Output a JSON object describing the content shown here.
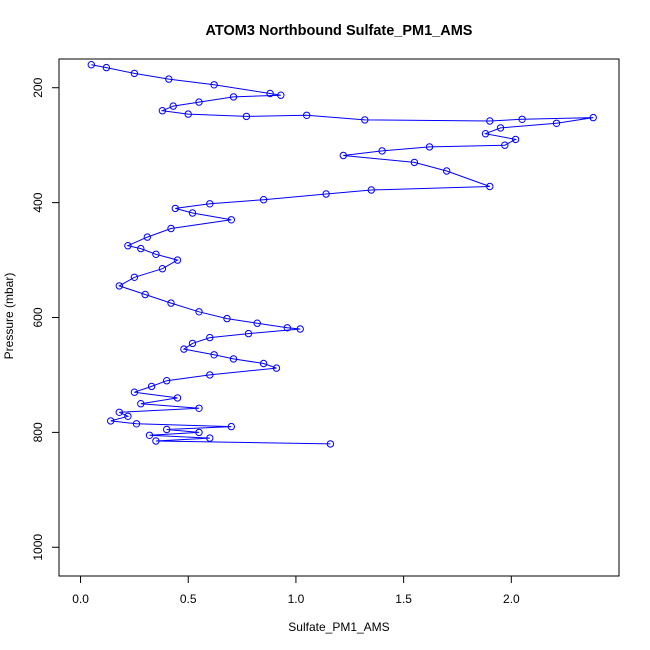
{
  "chart_data": {
    "type": "line",
    "title": "ATOM3 Northbound Sulfate_PM1_AMS",
    "xlabel": "Sulfate_PM1_AMS",
    "ylabel": "Pressure (mbar)",
    "xlim": [
      -0.1,
      2.5
    ],
    "ylim": [
      1050,
      150
    ],
    "y_reversed": true,
    "grid": false,
    "marker": "open-circle",
    "line_color": "#0000ff",
    "marker_color": "#0000ff",
    "x_ticks": [
      0.0,
      0.5,
      1.0,
      1.5,
      2.0
    ],
    "x_tick_labels": [
      "0.0",
      "0.5",
      "1.0",
      "1.5",
      "2.0"
    ],
    "y_ticks": [
      200,
      400,
      600,
      800,
      1000
    ],
    "y_tick_labels": [
      "200",
      "400",
      "600",
      "800",
      "1000"
    ],
    "series": [
      {
        "x": [
          0.05,
          0.12,
          0.25,
          0.41,
          0.62,
          0.88,
          0.93,
          0.71,
          0.55,
          0.43,
          0.38,
          0.5,
          0.77,
          1.05,
          1.32,
          1.9,
          2.05,
          2.38,
          2.21,
          1.95,
          1.88,
          2.02,
          1.97,
          1.62,
          1.4,
          1.22,
          1.55,
          1.7,
          1.9,
          1.35,
          1.14,
          0.85,
          0.6,
          0.44,
          0.52,
          0.7,
          0.42,
          0.31,
          0.22,
          0.28,
          0.35,
          0.45,
          0.38,
          0.25,
          0.18,
          0.3,
          0.42,
          0.55,
          0.68,
          0.82,
          0.96,
          1.02,
          0.78,
          0.6,
          0.52,
          0.48,
          0.62,
          0.71,
          0.85,
          0.91,
          0.6,
          0.4,
          0.33,
          0.25,
          0.45,
          0.28,
          0.55,
          0.18,
          0.22,
          0.14,
          0.26,
          0.7,
          0.4,
          0.55,
          0.32,
          0.6,
          0.35,
          1.16
        ],
        "y": [
          160,
          165,
          175,
          185,
          195,
          210,
          213,
          216,
          225,
          232,
          240,
          246,
          250,
          248,
          256,
          258,
          255,
          252,
          262,
          270,
          280,
          290,
          300,
          303,
          310,
          318,
          330,
          345,
          372,
          378,
          385,
          395,
          402,
          410,
          418,
          430,
          445,
          460,
          475,
          480,
          490,
          500,
          515,
          530,
          545,
          560,
          575,
          590,
          602,
          610,
          618,
          620,
          628,
          635,
          645,
          655,
          665,
          672,
          680,
          688,
          700,
          710,
          720,
          730,
          740,
          750,
          758,
          765,
          772,
          780,
          785,
          790,
          795,
          800,
          805,
          810,
          815,
          820
        ]
      }
    ]
  }
}
